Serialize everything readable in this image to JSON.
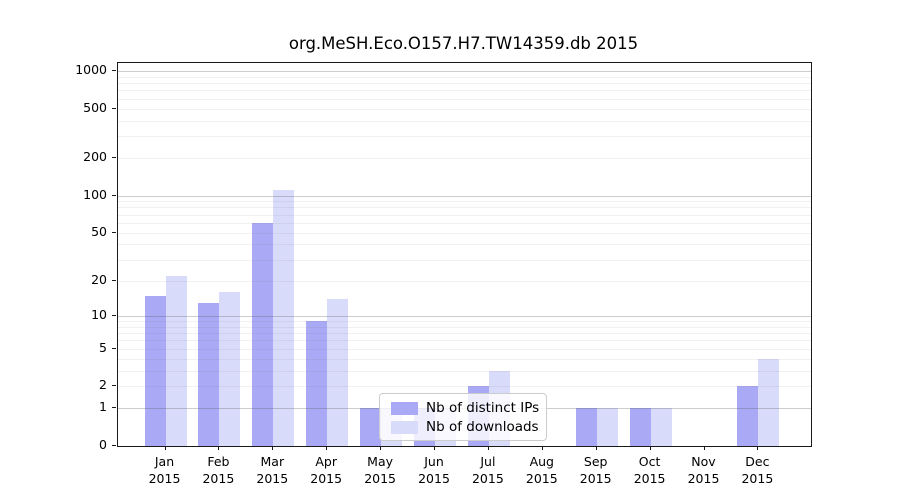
{
  "chart_data": {
    "type": "bar",
    "title": "org.MeSH.Eco.O157.H7.TW14359.db 2015",
    "x_categories": [
      "Jan",
      "Feb",
      "Mar",
      "Apr",
      "May",
      "Jun",
      "Jul",
      "Aug",
      "Sep",
      "Oct",
      "Nov",
      "Dec"
    ],
    "x_sublabel": "2015",
    "series": [
      {
        "name": "Nb of distinct IPs",
        "color": "#a9a9f5",
        "values": [
          15,
          13,
          60,
          9,
          1,
          1,
          2,
          0,
          1,
          1,
          0,
          2
        ]
      },
      {
        "name": "Nb of downloads",
        "color": "#d9dbfa",
        "values": [
          22,
          16,
          110,
          14,
          1,
          1,
          3,
          0,
          1,
          1,
          0,
          4
        ]
      }
    ],
    "y_ticks": [
      0,
      1,
      2,
      5,
      10,
      20,
      50,
      100,
      200,
      500,
      1000
    ],
    "y_scale": "log10(1+x)",
    "ylim": [
      0,
      1160
    ],
    "grid": true,
    "legend": {
      "position": "bottom-center"
    }
  }
}
